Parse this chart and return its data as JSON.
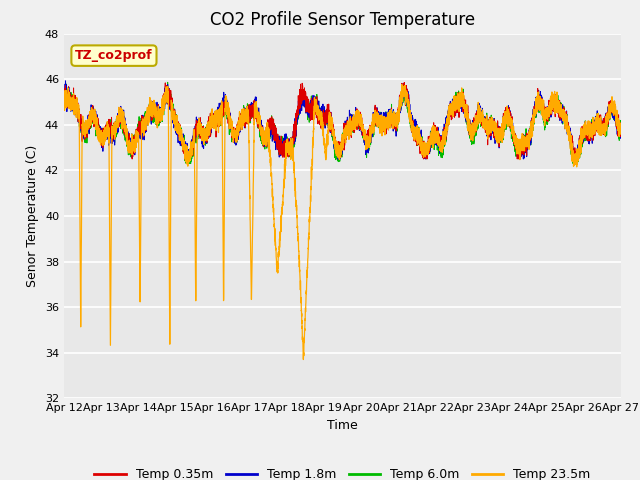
{
  "title": "CO2 Profile Sensor Temperature",
  "ylabel": "Senor Temperature (C)",
  "xlabel": "Time",
  "ylim": [
    32,
    48
  ],
  "yticks": [
    32,
    34,
    36,
    38,
    40,
    42,
    44,
    46,
    48
  ],
  "xtick_labels": [
    "Apr 12",
    "Apr 13",
    "Apr 14",
    "Apr 15",
    "Apr 16",
    "Apr 17",
    "Apr 18",
    "Apr 19",
    "Apr 20",
    "Apr 21",
    "Apr 22",
    "Apr 23",
    "Apr 24",
    "Apr 25",
    "Apr 26",
    "Apr 27"
  ],
  "legend_labels": [
    "Temp 0.35m",
    "Temp 1.8m",
    "Temp 6.0m",
    "Temp 23.5m"
  ],
  "legend_colors": [
    "#dd0000",
    "#0000cc",
    "#00bb00",
    "#ffaa00"
  ],
  "annotation_text": "TZ_co2prof",
  "annotation_box_facecolor": "#ffffcc",
  "annotation_box_edgecolor": "#bbaa00",
  "annotation_text_color": "#cc0000",
  "plot_bg_color": "#e8e8e8",
  "fig_bg_color": "#f0f0f0",
  "grid_color": "#ffffff",
  "title_fontsize": 12,
  "axis_label_fontsize": 9,
  "tick_fontsize": 8,
  "legend_fontsize": 9,
  "dip_times": [
    0.45,
    1.25,
    2.05,
    2.85,
    3.55,
    4.3,
    5.05,
    5.75,
    6.45,
    7.05
  ],
  "dip_bottoms": [
    35.0,
    34.3,
    36.2,
    34.3,
    36.0,
    36.0,
    36.3,
    37.5,
    33.8,
    42.5
  ],
  "dip_widths": [
    0.04,
    0.04,
    0.04,
    0.04,
    0.04,
    0.04,
    0.08,
    0.25,
    0.3,
    0.1
  ]
}
